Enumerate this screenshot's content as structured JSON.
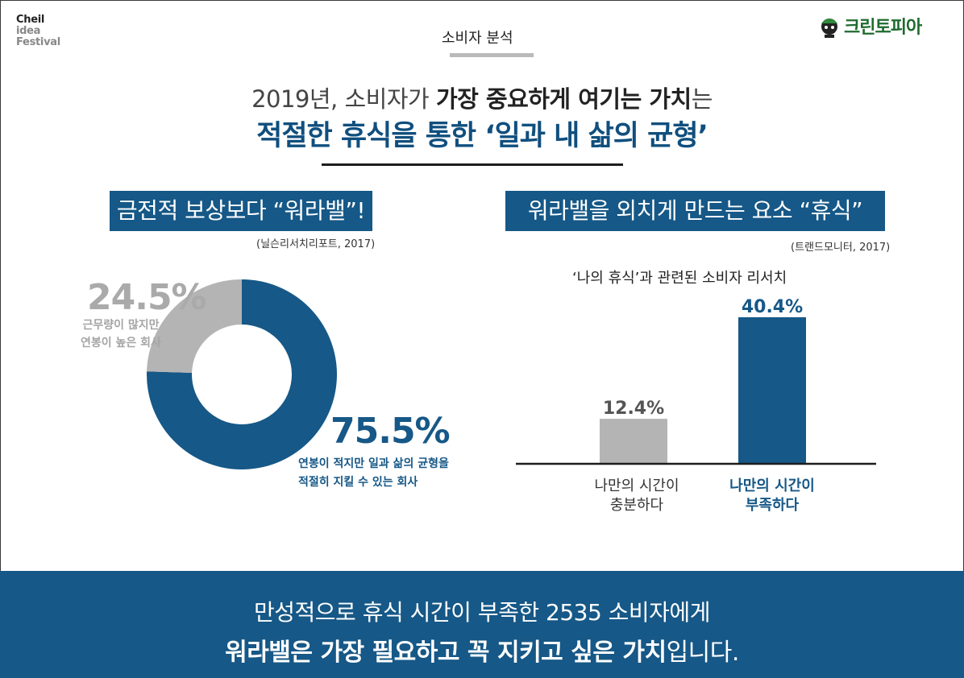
{
  "brand": {
    "line1": "Cheil",
    "line2": "idea",
    "line3": "Festival"
  },
  "section_label": "소비자 분석",
  "client_logo": {
    "name": "크린토피아"
  },
  "headline": {
    "line1_pre": "2019년, 소비자가 ",
    "line1_bold": "가장 중요하게 여기는 가치",
    "line1_post": "는",
    "line2": "적절한 휴식을 통한 ‘일과 내 삶의 균형’"
  },
  "left_panel": {
    "banner": "금전적 보상보다 “워라밸”!",
    "source": "(닐슨리서치리포트, 2017)"
  },
  "right_panel": {
    "banner": "워라밸을 외치게 만드는 요소 “휴식”",
    "source": "(트랜드모니터, 2017)"
  },
  "footer": {
    "line1": "만성적으로 휴식 시간이 부족한 2535 소비자에게",
    "line2_bold": "워라밸은 가장 필요하고 꼭 지키고 싶은 가치",
    "line2_post": "입니다."
  },
  "colors": {
    "primary": "#165887",
    "secondary": "#b4b4b4",
    "secondary_text": "#a5a5a5"
  },
  "chart_data": [
    {
      "type": "pie",
      "variant": "donut",
      "title": "금전적 보상보다 “워라밸”!",
      "slices": [
        {
          "label_pct": "75.5%",
          "value": 75.5,
          "desc_line1": "연봉이 적지만 일과 삶의 균형을",
          "desc_line2": "적절히 지킬 수 있는 회사",
          "color": "#165887"
        },
        {
          "label_pct": "24.5%",
          "value": 24.5,
          "desc_line1": "근무량이 많지만",
          "desc_line2": "연봉이 높은 회사",
          "color": "#b4b4b4"
        }
      ]
    },
    {
      "type": "bar",
      "title": "‘나의 휴식’과 관련된 소비자 리서치",
      "categories": [
        {
          "line1": "나만의 시간이",
          "line2": "충분하다"
        },
        {
          "line1": "나만의 시간이",
          "line2": "부족하다"
        }
      ],
      "values": [
        12.4,
        40.4
      ],
      "value_labels": [
        "12.4%",
        "40.4%"
      ],
      "colors": [
        "#b4b4b4",
        "#165887"
      ],
      "ylim": [
        0,
        40.4
      ],
      "grid": false
    }
  ]
}
